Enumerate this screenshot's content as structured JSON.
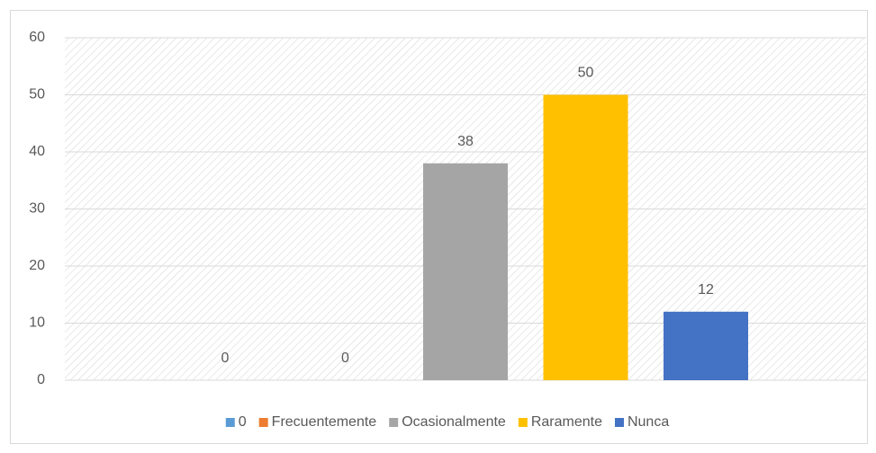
{
  "chart_data": {
    "type": "bar",
    "categories": [
      null
    ],
    "series": [
      {
        "name": "0",
        "color": "#5b9bd5",
        "values": [
          0
        ]
      },
      {
        "name": "Frecuentemente",
        "color": "#ed7d31",
        "values": [
          0
        ]
      },
      {
        "name": "Ocasionalmente",
        "color": "#a5a5a5",
        "values": [
          38
        ]
      },
      {
        "name": "Raramente",
        "color": "#ffc000",
        "values": [
          50
        ]
      },
      {
        "name": "Nunca",
        "color": "#4472c4",
        "values": [
          12
        ]
      }
    ],
    "ylim": [
      0,
      60
    ],
    "yticks": [
      0,
      10,
      20,
      30,
      40,
      50,
      60
    ],
    "grid": true,
    "legend": "bottom",
    "data_labels": true
  }
}
